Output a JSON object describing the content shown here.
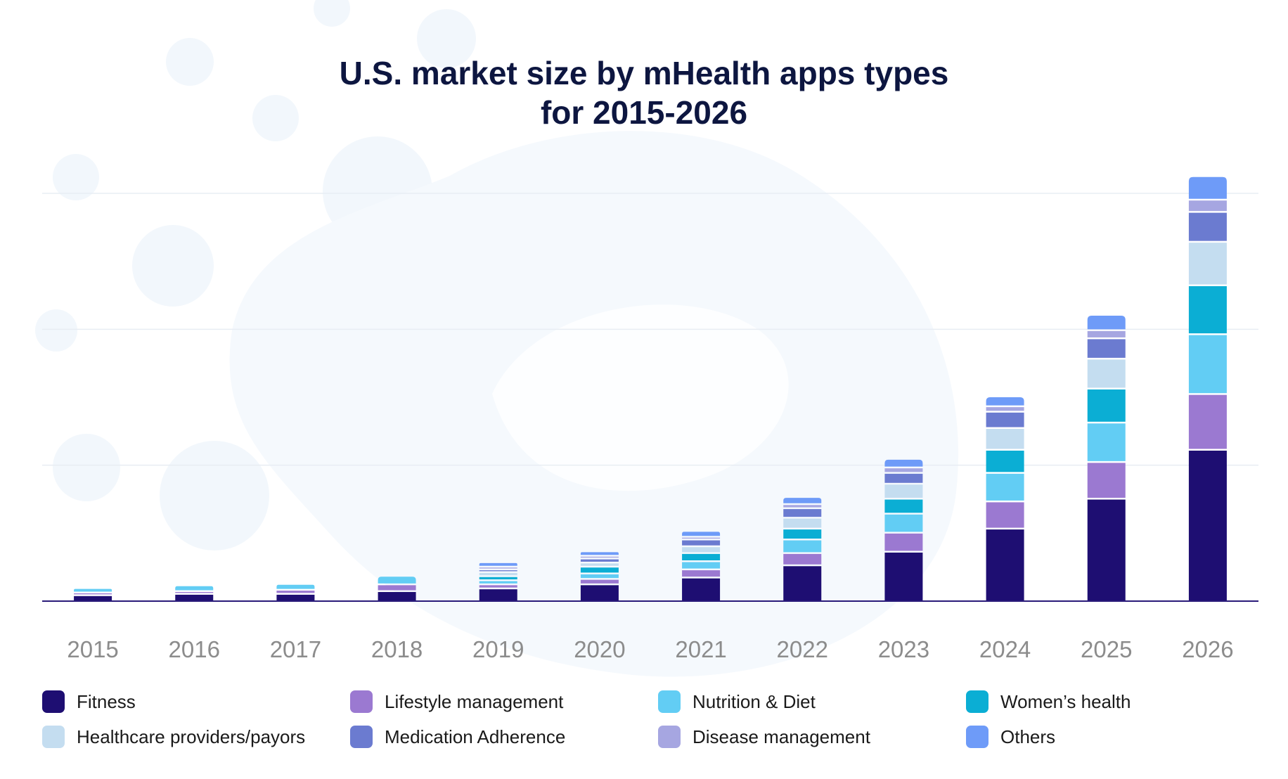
{
  "chart_data": {
    "type": "bar",
    "stacked": true,
    "title": "U.S. market size by mHealth apps types",
    "subtitle": "for 2015-2026",
    "xlabel": "",
    "ylabel": "",
    "ylim": [
      0,
      300
    ],
    "grid": true,
    "legend_position": "bottom",
    "categories": [
      "2015",
      "2016",
      "2017",
      "2018",
      "2019",
      "2020",
      "2021",
      "2022",
      "2023",
      "2024",
      "2025",
      "2026"
    ],
    "series": [
      {
        "name": "Fitness",
        "color": "#1e0e72",
        "values": [
          5,
          6,
          6,
          8,
          10,
          13,
          18,
          27,
          37,
          54,
          76,
          112
        ]
      },
      {
        "name": "Lifestyle management",
        "color": "#9b79d1",
        "values": [
          2,
          2,
          3,
          5,
          3,
          4,
          6,
          9,
          14,
          20,
          27,
          41
        ]
      },
      {
        "name": "Nutrition & Diet",
        "color": "#62cdf4",
        "values": [
          2,
          3,
          3,
          5,
          3,
          4,
          6,
          10,
          14,
          21,
          29,
          44
        ]
      },
      {
        "name": "Women’s health",
        "color": "#0baed4",
        "values": [
          0,
          0,
          0,
          0,
          3,
          5,
          6,
          8,
          11,
          17,
          25,
          36
        ]
      },
      {
        "name": "Healthcare providers/payors",
        "color": "#c4ddf0",
        "values": [
          0,
          0,
          0,
          0,
          3,
          3,
          5,
          8,
          11,
          16,
          22,
          32
        ]
      },
      {
        "name": "Medication Adherence",
        "color": "#6b7bd0",
        "values": [
          0,
          0,
          0,
          0,
          2,
          3,
          5,
          7,
          8,
          12,
          15,
          22
        ]
      },
      {
        "name": "Disease management",
        "color": "#a6a6e1",
        "values": [
          0,
          0,
          0,
          0,
          2,
          2,
          2,
          3,
          4,
          4,
          6,
          9
        ]
      },
      {
        "name": "Others",
        "color": "#6e9bf8",
        "values": [
          0,
          0,
          0,
          0,
          2,
          2,
          3,
          4,
          5,
          6,
          10,
          16
        ]
      }
    ]
  }
}
